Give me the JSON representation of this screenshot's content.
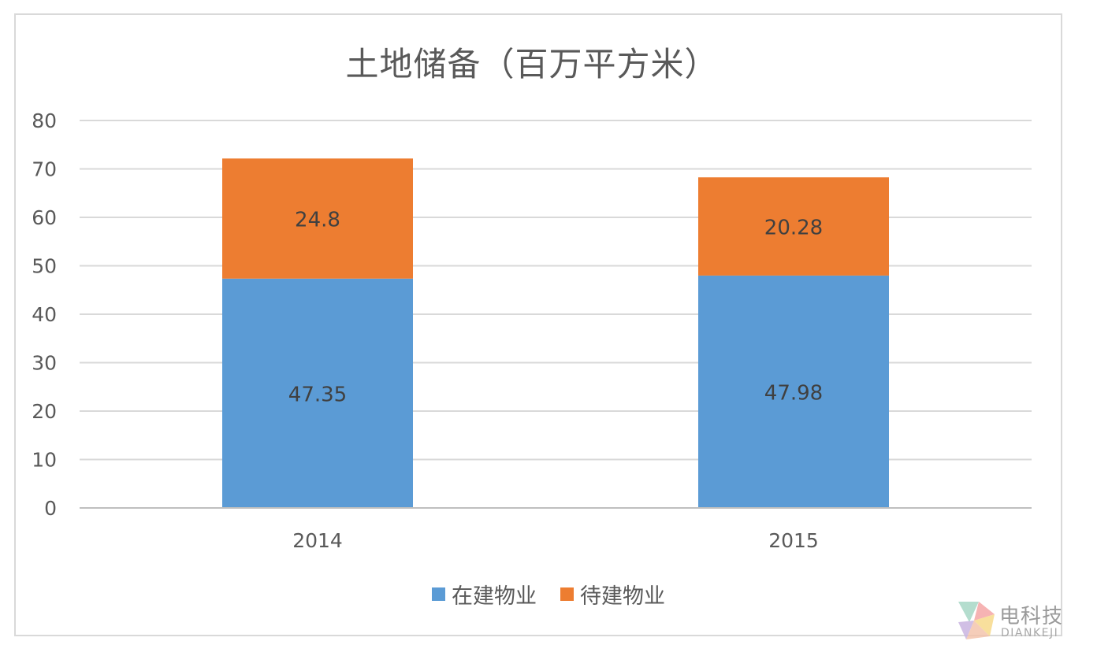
{
  "chart_data": {
    "type": "bar",
    "stacked": true,
    "title": "土地储备（百万平方米）",
    "categories": [
      "2014",
      "2015"
    ],
    "series": [
      {
        "name": "在建物业",
        "values": [
          47.35,
          47.98
        ],
        "labels": [
          "47.35",
          "47.98"
        ],
        "color": "#5b9bd5"
      },
      {
        "name": "待建物业",
        "values": [
          24.8,
          20.28
        ],
        "labels": [
          "24.8",
          "20.28"
        ],
        "color": "#ed7d31"
      }
    ],
    "ylim": [
      0,
      80
    ],
    "yticks": [
      0,
      10,
      20,
      30,
      40,
      50,
      60,
      70,
      80
    ],
    "ytick_labels": [
      "0",
      "10",
      "20",
      "30",
      "40",
      "50",
      "60",
      "70",
      "80"
    ],
    "grid": true,
    "legend": "bottom",
    "colors": {
      "text": "#595959",
      "grid": "#d9d9d9",
      "axis": "#bfbfbf",
      "data_label": "#404040"
    }
  },
  "watermark": {
    "name": "电科技",
    "sub": "DIANKEJI"
  }
}
